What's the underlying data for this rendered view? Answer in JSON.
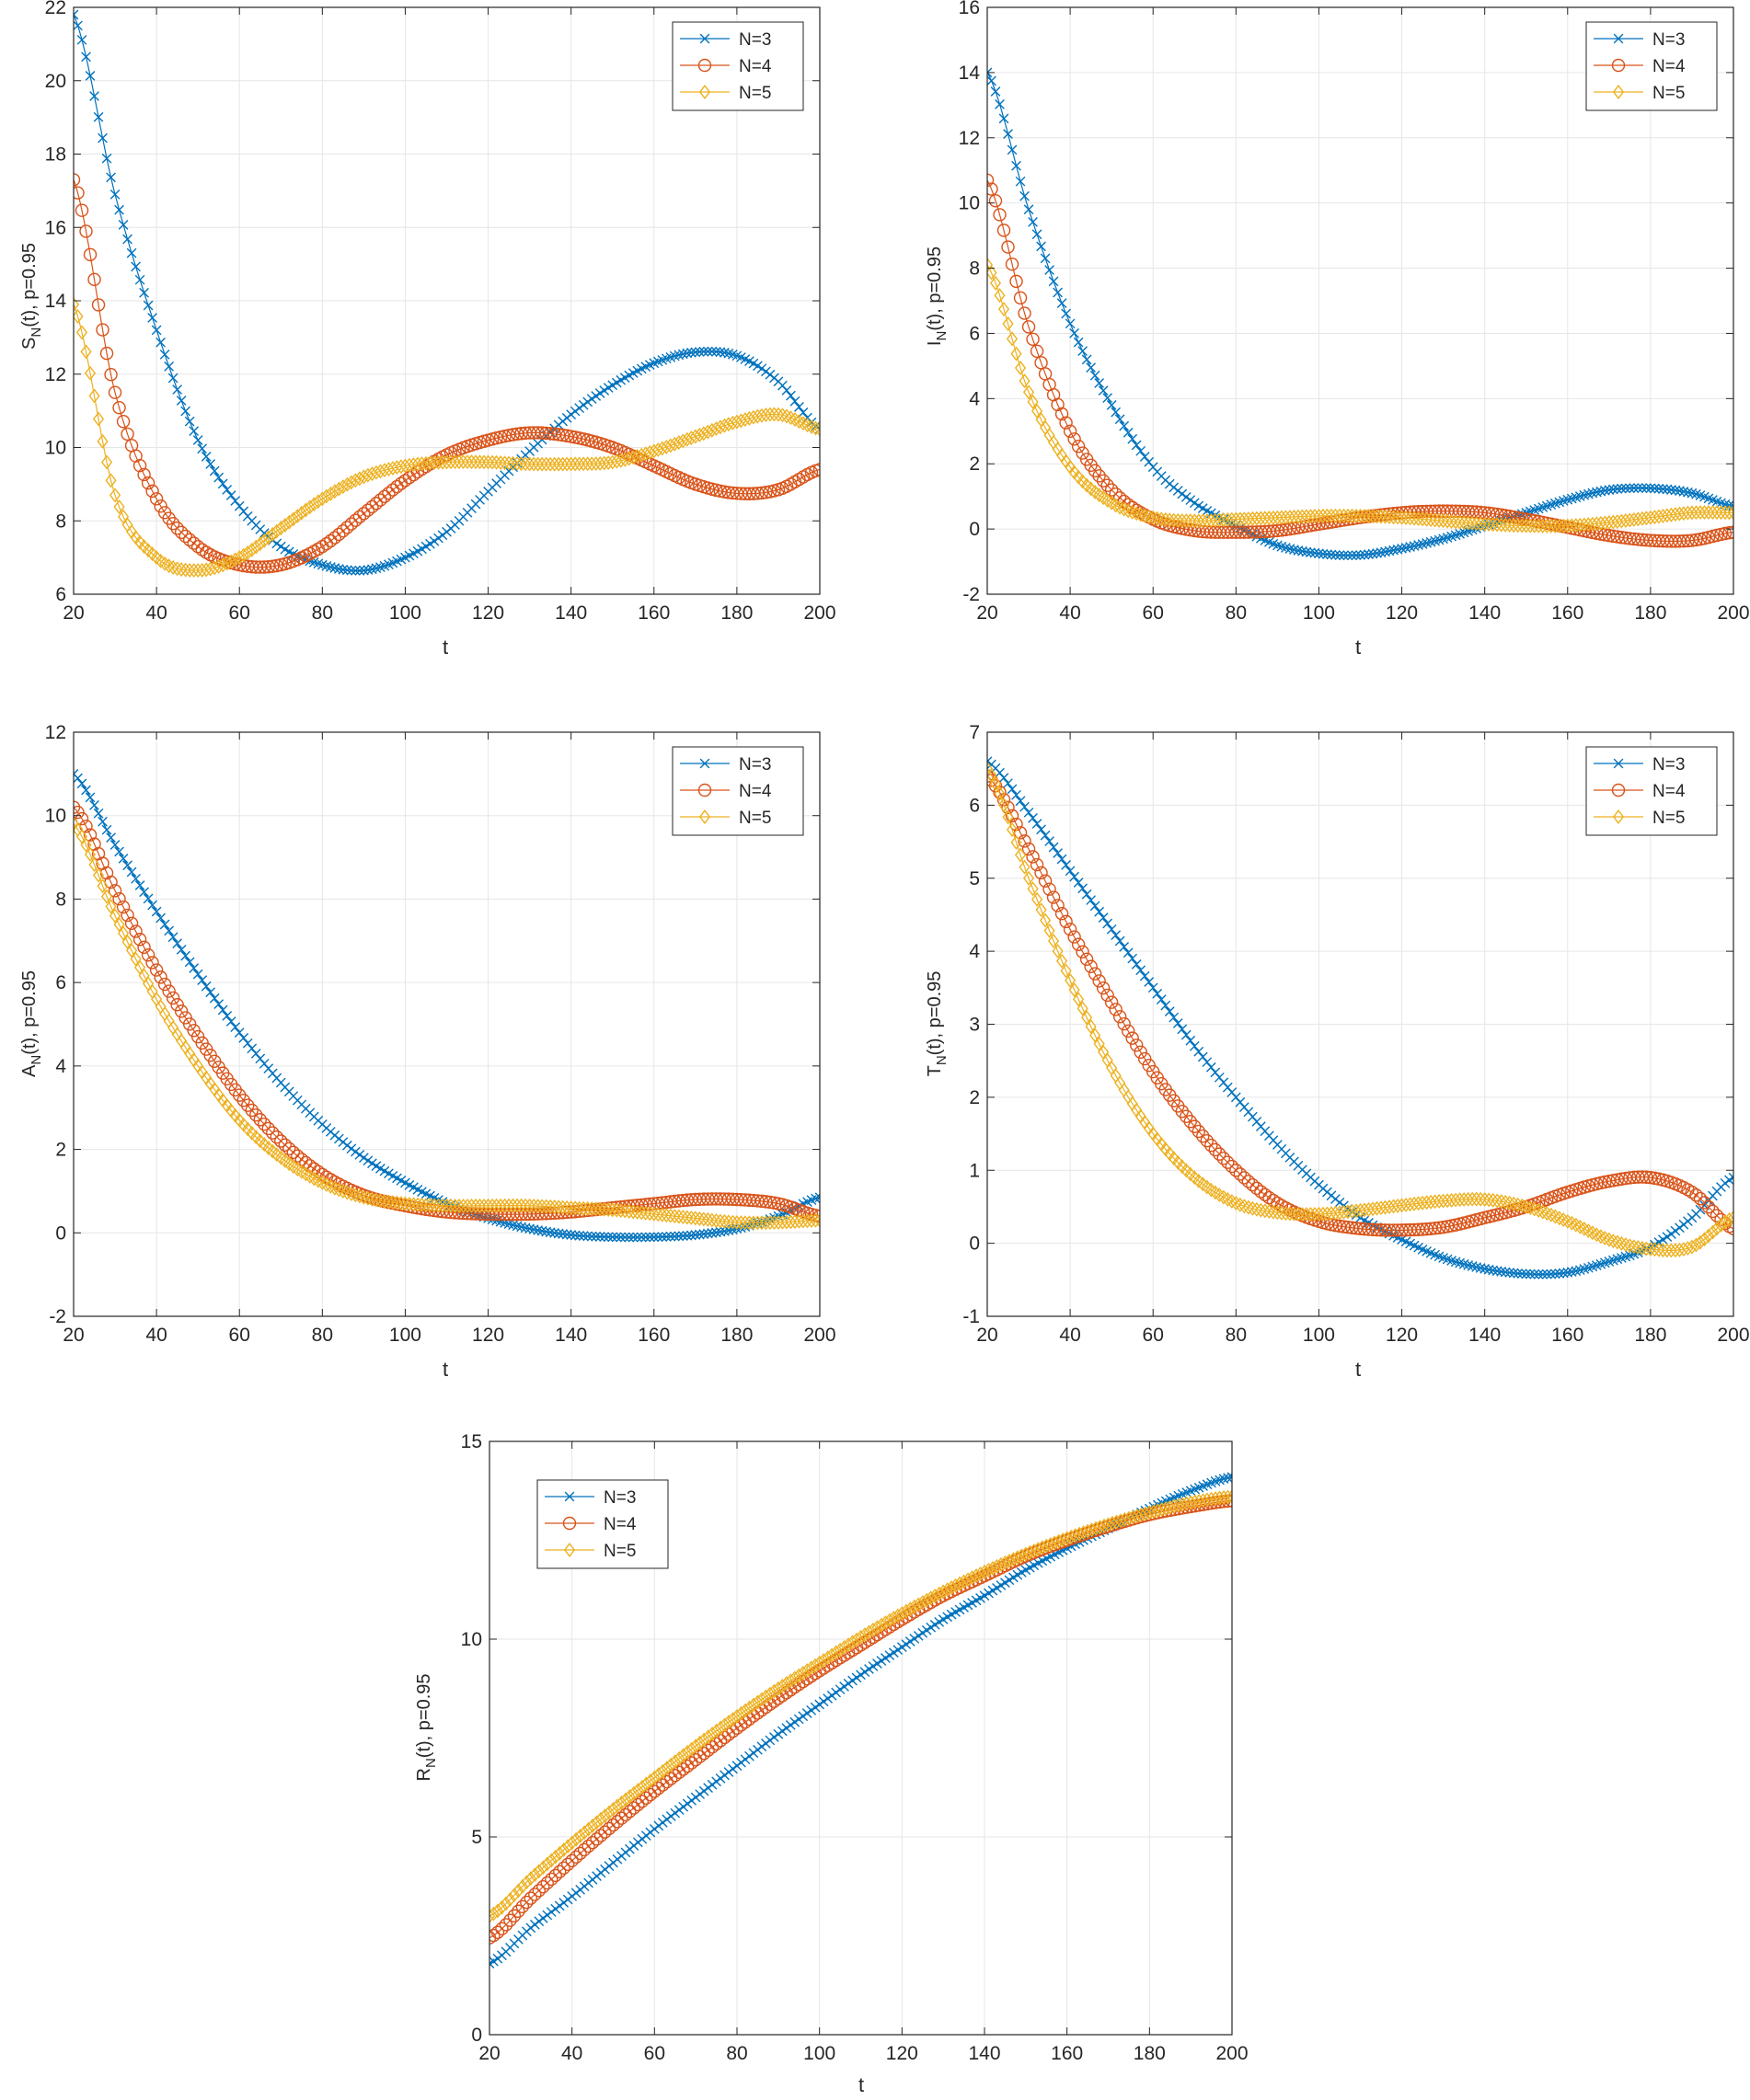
{
  "chart_data": [
    {
      "id": "S",
      "type": "line",
      "ylabel_main": "S",
      "ylabel_sub": "N",
      "ylabel_rest": "(t), p=0.95",
      "xlabel": "t",
      "xlim": [
        20,
        200
      ],
      "ylim": [
        6,
        22
      ],
      "xticks": [
        20,
        40,
        60,
        80,
        100,
        120,
        140,
        160,
        180,
        200
      ],
      "yticks": [
        6,
        8,
        10,
        12,
        14,
        16,
        18,
        20,
        22
      ],
      "legend_location": "top-right",
      "grid": true,
      "series": [
        {
          "name": "N=3",
          "marker": "x",
          "color": "#0072BD",
          "x": [
            20,
            30,
            40,
            50,
            60,
            70,
            80,
            90,
            100,
            110,
            120,
            130,
            140,
            150,
            160,
            170,
            180,
            190,
            200
          ],
          "y": [
            21.8,
            16.9,
            13.2,
            10.2,
            8.4,
            7.3,
            6.8,
            6.65,
            7.0,
            7.7,
            8.8,
            9.9,
            10.9,
            11.7,
            12.3,
            12.6,
            12.5,
            11.8,
            10.5
          ]
        },
        {
          "name": "N=4",
          "marker": "o",
          "color": "#D95319",
          "x": [
            20,
            30,
            40,
            50,
            60,
            70,
            80,
            90,
            100,
            110,
            120,
            130,
            140,
            150,
            160,
            170,
            180,
            190,
            200
          ],
          "y": [
            17.3,
            11.5,
            8.6,
            7.3,
            6.8,
            6.8,
            7.3,
            8.2,
            9.1,
            9.8,
            10.2,
            10.4,
            10.3,
            10.0,
            9.5,
            9.0,
            8.75,
            8.85,
            9.4
          ]
        },
        {
          "name": "N=5",
          "marker": "d",
          "color": "#EDB120",
          "x": [
            20,
            30,
            40,
            50,
            60,
            70,
            80,
            90,
            100,
            110,
            120,
            130,
            140,
            150,
            160,
            170,
            180,
            190,
            200
          ],
          "y": [
            13.9,
            8.7,
            7.0,
            6.65,
            7.0,
            7.8,
            8.6,
            9.2,
            9.5,
            9.6,
            9.6,
            9.55,
            9.55,
            9.6,
            9.9,
            10.3,
            10.7,
            10.9,
            10.5
          ]
        }
      ]
    },
    {
      "id": "I",
      "type": "line",
      "ylabel_main": "I",
      "ylabel_sub": "N",
      "ylabel_rest": "(t), p=0.95",
      "xlabel": "t",
      "xlim": [
        20,
        200
      ],
      "ylim": [
        -2,
        16
      ],
      "xticks": [
        20,
        40,
        60,
        80,
        100,
        120,
        140,
        160,
        180,
        200
      ],
      "yticks": [
        -2,
        0,
        2,
        4,
        6,
        8,
        10,
        12,
        14,
        16
      ],
      "legend_location": "top-right",
      "grid": true,
      "series": [
        {
          "name": "N=3",
          "marker": "x",
          "color": "#0072BD",
          "x": [
            20,
            30,
            40,
            50,
            60,
            70,
            80,
            90,
            100,
            110,
            120,
            130,
            140,
            150,
            160,
            170,
            180,
            190,
            200
          ],
          "y": [
            14.0,
            9.8,
            6.3,
            3.8,
            1.9,
            0.8,
            0.1,
            -0.5,
            -0.75,
            -0.8,
            -0.6,
            -0.3,
            0.1,
            0.5,
            0.9,
            1.2,
            1.25,
            1.1,
            0.7
          ]
        },
        {
          "name": "N=4",
          "marker": "o",
          "color": "#D95319",
          "x": [
            20,
            30,
            40,
            50,
            60,
            70,
            80,
            90,
            100,
            110,
            120,
            130,
            140,
            150,
            160,
            170,
            180,
            190,
            200
          ],
          "y": [
            10.7,
            6.2,
            3.0,
            1.2,
            0.3,
            -0.05,
            -0.1,
            -0.05,
            0.15,
            0.35,
            0.5,
            0.55,
            0.5,
            0.3,
            0.05,
            -0.2,
            -0.35,
            -0.35,
            -0.1
          ]
        },
        {
          "name": "N=5",
          "marker": "d",
          "color": "#EDB120",
          "x": [
            20,
            30,
            40,
            50,
            60,
            70,
            80,
            90,
            100,
            110,
            120,
            130,
            140,
            150,
            160,
            170,
            180,
            190,
            200
          ],
          "y": [
            8.1,
            4.2,
            1.9,
            0.8,
            0.35,
            0.25,
            0.3,
            0.35,
            0.4,
            0.4,
            0.35,
            0.25,
            0.15,
            0.1,
            0.1,
            0.2,
            0.35,
            0.5,
            0.5
          ]
        }
      ]
    },
    {
      "id": "A",
      "type": "line",
      "ylabel_main": "A",
      "ylabel_sub": "N",
      "ylabel_rest": "(t), p=0.95",
      "xlabel": "t",
      "xlim": [
        20,
        200
      ],
      "ylim": [
        -2,
        12
      ],
      "xticks": [
        20,
        40,
        60,
        80,
        100,
        120,
        140,
        160,
        180,
        200
      ],
      "yticks": [
        -2,
        0,
        2,
        4,
        6,
        8,
        10,
        12
      ],
      "legend_location": "top-right",
      "grid": true,
      "series": [
        {
          "name": "N=3",
          "marker": "x",
          "color": "#0072BD",
          "x": [
            20,
            30,
            40,
            50,
            60,
            70,
            80,
            90,
            100,
            110,
            120,
            130,
            140,
            150,
            160,
            170,
            180,
            190,
            200
          ],
          "y": [
            11.0,
            9.3,
            7.7,
            6.2,
            4.8,
            3.6,
            2.6,
            1.8,
            1.2,
            0.7,
            0.35,
            0.1,
            -0.05,
            -0.1,
            -0.1,
            -0.05,
            0.1,
            0.4,
            0.85
          ]
        },
        {
          "name": "N=4",
          "marker": "o",
          "color": "#D95319",
          "x": [
            20,
            30,
            40,
            50,
            60,
            70,
            80,
            90,
            100,
            110,
            120,
            130,
            140,
            150,
            160,
            170,
            180,
            190,
            200
          ],
          "y": [
            10.2,
            8.2,
            6.3,
            4.7,
            3.3,
            2.2,
            1.4,
            0.9,
            0.65,
            0.5,
            0.45,
            0.45,
            0.5,
            0.6,
            0.7,
            0.8,
            0.8,
            0.7,
            0.4
          ]
        },
        {
          "name": "N=5",
          "marker": "d",
          "color": "#EDB120",
          "x": [
            20,
            30,
            40,
            50,
            60,
            70,
            80,
            90,
            100,
            110,
            120,
            130,
            140,
            150,
            160,
            170,
            180,
            190,
            200
          ],
          "y": [
            9.8,
            7.6,
            5.6,
            4.0,
            2.7,
            1.8,
            1.2,
            0.85,
            0.7,
            0.65,
            0.65,
            0.65,
            0.6,
            0.55,
            0.45,
            0.35,
            0.25,
            0.25,
            0.3
          ]
        }
      ]
    },
    {
      "id": "T",
      "type": "line",
      "ylabel_main": "T",
      "ylabel_sub": "N",
      "ylabel_rest": "(t), p=0.95",
      "xlabel": "t",
      "xlim": [
        20,
        200
      ],
      "ylim": [
        -1,
        7
      ],
      "xticks": [
        20,
        40,
        60,
        80,
        100,
        120,
        140,
        160,
        180,
        200
      ],
      "yticks": [
        -1,
        0,
        1,
        2,
        3,
        4,
        5,
        6,
        7
      ],
      "legend_location": "top-right",
      "grid": true,
      "series": [
        {
          "name": "N=3",
          "marker": "x",
          "color": "#0072BD",
          "x": [
            20,
            30,
            40,
            50,
            60,
            70,
            80,
            90,
            100,
            110,
            120,
            130,
            140,
            150,
            160,
            170,
            180,
            190,
            200
          ],
          "y": [
            6.6,
            5.9,
            5.1,
            4.3,
            3.5,
            2.7,
            2.0,
            1.35,
            0.8,
            0.35,
            0.05,
            -0.2,
            -0.35,
            -0.42,
            -0.4,
            -0.25,
            -0.05,
            0.35,
            0.9
          ]
        },
        {
          "name": "N=4",
          "marker": "o",
          "color": "#D95319",
          "x": [
            20,
            30,
            40,
            50,
            60,
            70,
            80,
            90,
            100,
            110,
            120,
            130,
            140,
            150,
            160,
            170,
            180,
            190,
            200
          ],
          "y": [
            6.4,
            5.4,
            4.3,
            3.3,
            2.35,
            1.6,
            1.0,
            0.55,
            0.3,
            0.2,
            0.18,
            0.22,
            0.35,
            0.5,
            0.7,
            0.85,
            0.9,
            0.7,
            0.2
          ]
        },
        {
          "name": "N=5",
          "marker": "d",
          "color": "#EDB120",
          "x": [
            20,
            30,
            40,
            50,
            60,
            70,
            80,
            90,
            100,
            110,
            120,
            130,
            140,
            150,
            160,
            170,
            180,
            190,
            200
          ],
          "y": [
            6.5,
            5.0,
            3.6,
            2.4,
            1.5,
            0.9,
            0.55,
            0.42,
            0.4,
            0.45,
            0.52,
            0.58,
            0.6,
            0.5,
            0.3,
            0.05,
            -0.08,
            -0.05,
            0.35
          ]
        }
      ]
    },
    {
      "id": "R",
      "type": "line",
      "ylabel_main": "R",
      "ylabel_sub": "N",
      "ylabel_rest": "(t), p=0.95",
      "xlabel": "t",
      "xlim": [
        20,
        200
      ],
      "ylim": [
        0,
        15
      ],
      "xticks": [
        20,
        40,
        60,
        80,
        100,
        120,
        140,
        160,
        180,
        200
      ],
      "yticks": [
        0,
        5,
        10,
        15
      ],
      "legend_location": "top-left",
      "grid": true,
      "series": [
        {
          "name": "N=3",
          "marker": "x",
          "color": "#0072BD",
          "x": [
            20,
            30,
            40,
            50,
            60,
            70,
            80,
            90,
            100,
            110,
            120,
            130,
            140,
            150,
            160,
            170,
            180,
            190,
            200
          ],
          "y": [
            1.8,
            2.7,
            3.5,
            4.35,
            5.2,
            6.0,
            6.8,
            7.6,
            8.35,
            9.1,
            9.8,
            10.5,
            11.1,
            11.75,
            12.3,
            12.8,
            13.3,
            13.75,
            14.1
          ]
        },
        {
          "name": "N=4",
          "marker": "o",
          "color": "#D95319",
          "x": [
            20,
            30,
            40,
            50,
            60,
            70,
            80,
            90,
            100,
            110,
            120,
            130,
            140,
            150,
            160,
            170,
            180,
            190,
            200
          ],
          "y": [
            2.45,
            3.45,
            4.4,
            5.3,
            6.15,
            6.95,
            7.75,
            8.5,
            9.2,
            9.85,
            10.5,
            11.1,
            11.6,
            12.1,
            12.5,
            12.85,
            13.15,
            13.35,
            13.5
          ]
        },
        {
          "name": "N=5",
          "marker": "d",
          "color": "#EDB120",
          "x": [
            20,
            30,
            40,
            50,
            60,
            70,
            80,
            90,
            100,
            110,
            120,
            130,
            140,
            150,
            160,
            170,
            180,
            190,
            200
          ],
          "y": [
            3.0,
            3.95,
            4.85,
            5.7,
            6.5,
            7.3,
            8.05,
            8.75,
            9.4,
            10.05,
            10.65,
            11.2,
            11.7,
            12.15,
            12.55,
            12.9,
            13.2,
            13.45,
            13.6
          ]
        }
      ]
    }
  ]
}
